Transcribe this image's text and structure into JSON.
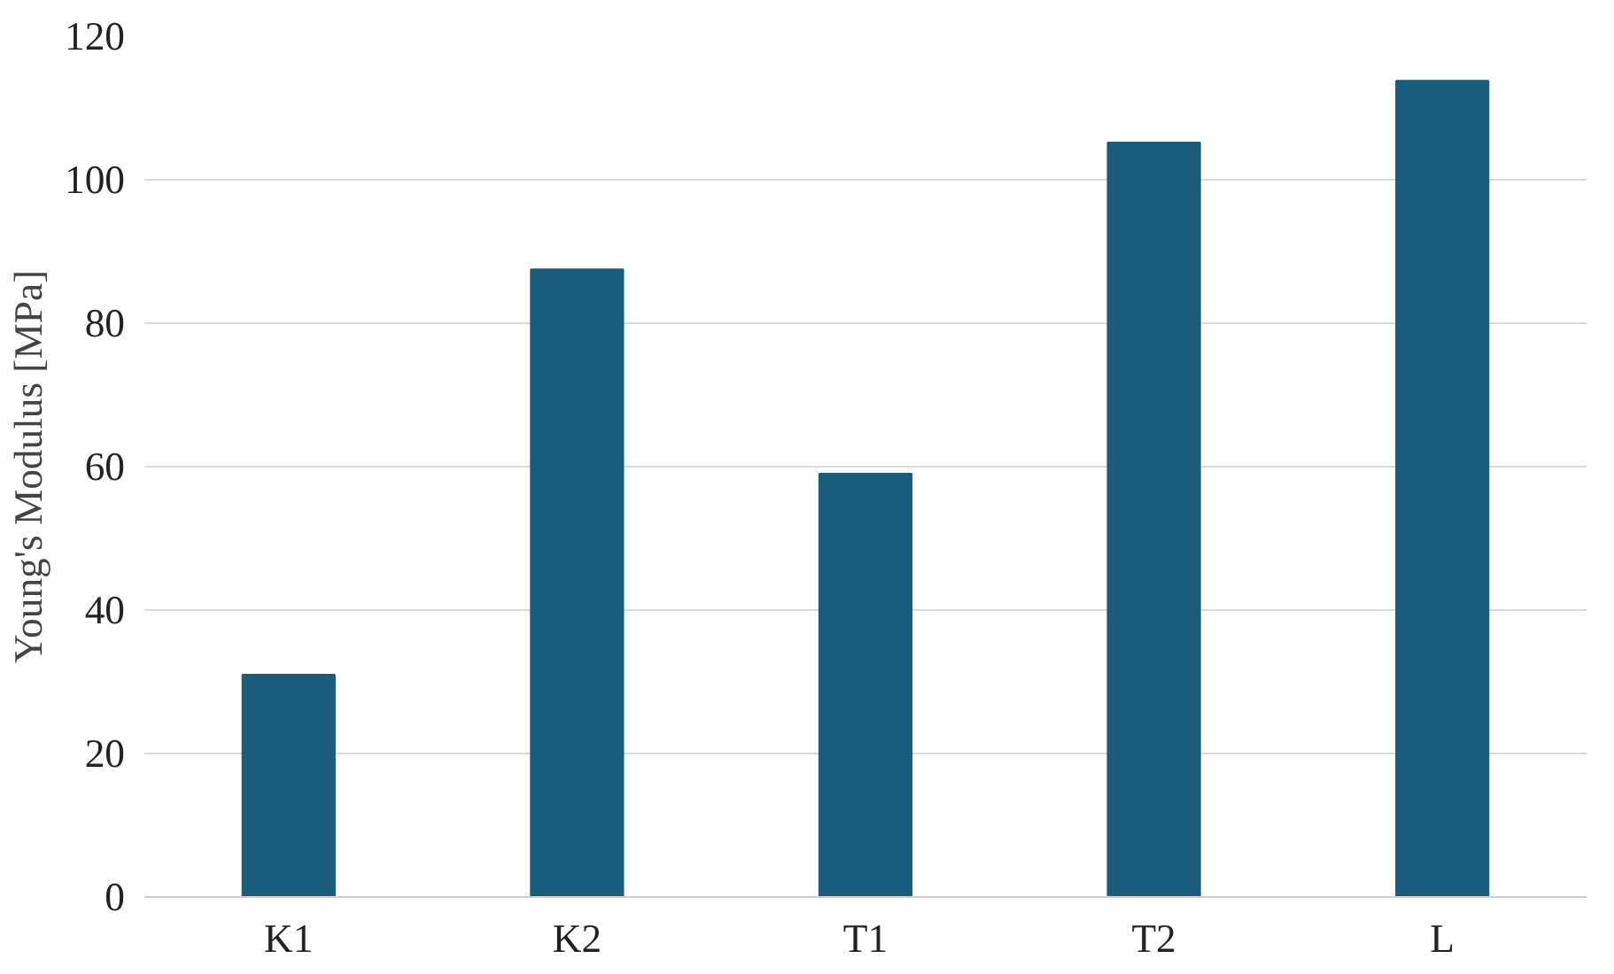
{
  "chart_data": {
    "type": "bar",
    "ylabel": "Young's Modulus [MPa]",
    "categories": [
      "K1",
      "K2",
      "T1",
      "T2",
      "L"
    ],
    "values": [
      31,
      87.5,
      59,
      105.2,
      113.8
    ],
    "color": "#1b5c7d",
    "ylim": [
      0,
      120
    ],
    "yticks": [
      0,
      20,
      40,
      60,
      80,
      100,
      120
    ],
    "grid": "y"
  }
}
